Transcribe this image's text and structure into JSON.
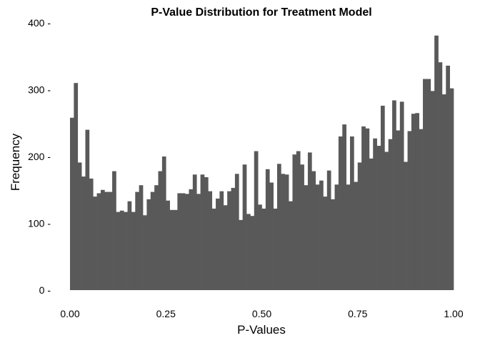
{
  "chart_data": {
    "type": "bar",
    "title": "P-Value Distribution for Treatment Model",
    "xlabel": "P-Values",
    "ylabel": "Frequency",
    "xlim": [
      0,
      1
    ],
    "ylim": [
      0,
      400
    ],
    "x_ticks": [
      0,
      0.25,
      0.5,
      0.75,
      1
    ],
    "x_tick_labels": [
      "0.00",
      "0.25",
      "0.50",
      "0.75",
      "1.00"
    ],
    "y_ticks": [
      0,
      100,
      200,
      300,
      400
    ],
    "y_tick_labels": [
      "0 -",
      "100 -",
      "200 -",
      "300 -",
      "400 -"
    ],
    "grid": false,
    "legend": "none",
    "bar_color": "#595959",
    "bin_width": 0.01,
    "bin_starts": [
      0.0,
      0.01,
      0.02,
      0.03,
      0.04,
      0.05,
      0.06,
      0.07,
      0.08,
      0.09,
      0.1,
      0.11,
      0.12,
      0.13,
      0.14,
      0.15,
      0.16,
      0.17,
      0.18,
      0.19,
      0.2,
      0.21,
      0.22,
      0.23,
      0.24,
      0.25,
      0.26,
      0.27,
      0.28,
      0.29,
      0.3,
      0.31,
      0.32,
      0.33,
      0.34,
      0.35,
      0.36,
      0.37,
      0.38,
      0.39,
      0.4,
      0.41,
      0.42,
      0.43,
      0.44,
      0.45,
      0.46,
      0.47,
      0.48,
      0.49,
      0.5,
      0.51,
      0.52,
      0.53,
      0.54,
      0.55,
      0.56,
      0.57,
      0.58,
      0.59,
      0.6,
      0.61,
      0.62,
      0.63,
      0.64,
      0.65,
      0.66,
      0.67,
      0.68,
      0.69,
      0.7,
      0.71,
      0.72,
      0.73,
      0.74,
      0.75,
      0.76,
      0.77,
      0.78,
      0.79,
      0.8,
      0.81,
      0.82,
      0.83,
      0.84,
      0.85,
      0.86,
      0.87,
      0.88,
      0.89,
      0.9,
      0.91,
      0.92,
      0.93,
      0.94,
      0.95,
      0.96,
      0.97,
      0.98,
      0.99
    ],
    "values": [
      258,
      310,
      191,
      170,
      240,
      167,
      140,
      145,
      150,
      147,
      147,
      178,
      117,
      119,
      117,
      133,
      117,
      147,
      157,
      112,
      136,
      147,
      157,
      178,
      200,
      134,
      120,
      120,
      145,
      145,
      144,
      151,
      173,
      144,
      173,
      169,
      148,
      122,
      137,
      148,
      127,
      148,
      153,
      174,
      105,
      188,
      114,
      111,
      208,
      128,
      122,
      181,
      161,
      122,
      189,
      174,
      173,
      133,
      203,
      208,
      188,
      157,
      206,
      178,
      158,
      164,
      140,
      179,
      136,
      158,
      230,
      248,
      158,
      230,
      162,
      191,
      245,
      242,
      197,
      227,
      216,
      276,
      207,
      226,
      284,
      239,
      282,
      192,
      238,
      264,
      265,
      241,
      316,
      316,
      298,
      381,
      341,
      293,
      336,
      302
    ]
  }
}
